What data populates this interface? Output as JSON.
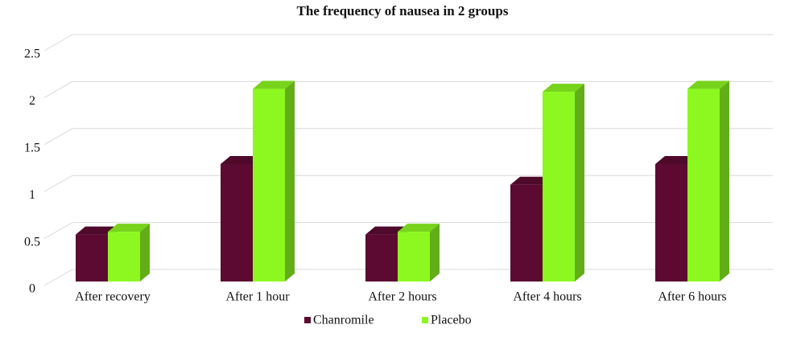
{
  "chart_data": {
    "type": "bar",
    "title": "The frequency of nausea in 2 groups",
    "categories": [
      "After recovery",
      "After 1 hour",
      "After 2 hours",
      "After 4 hours",
      "After 6 hours"
    ],
    "series": [
      {
        "name": "Chanromile",
        "color": "#5c0a32",
        "values": [
          0.5,
          1.25,
          0.5,
          1.03,
          1.25
        ]
      },
      {
        "name": "Placebo",
        "color": "#8cf820",
        "values": [
          0.53,
          2.05,
          0.53,
          2.02,
          2.05
        ]
      }
    ],
    "ylim": [
      0,
      2.5
    ],
    "yticks": [
      0,
      0.5,
      1,
      1.5,
      2,
      2.5
    ],
    "grid": true,
    "legend": "bottom"
  }
}
